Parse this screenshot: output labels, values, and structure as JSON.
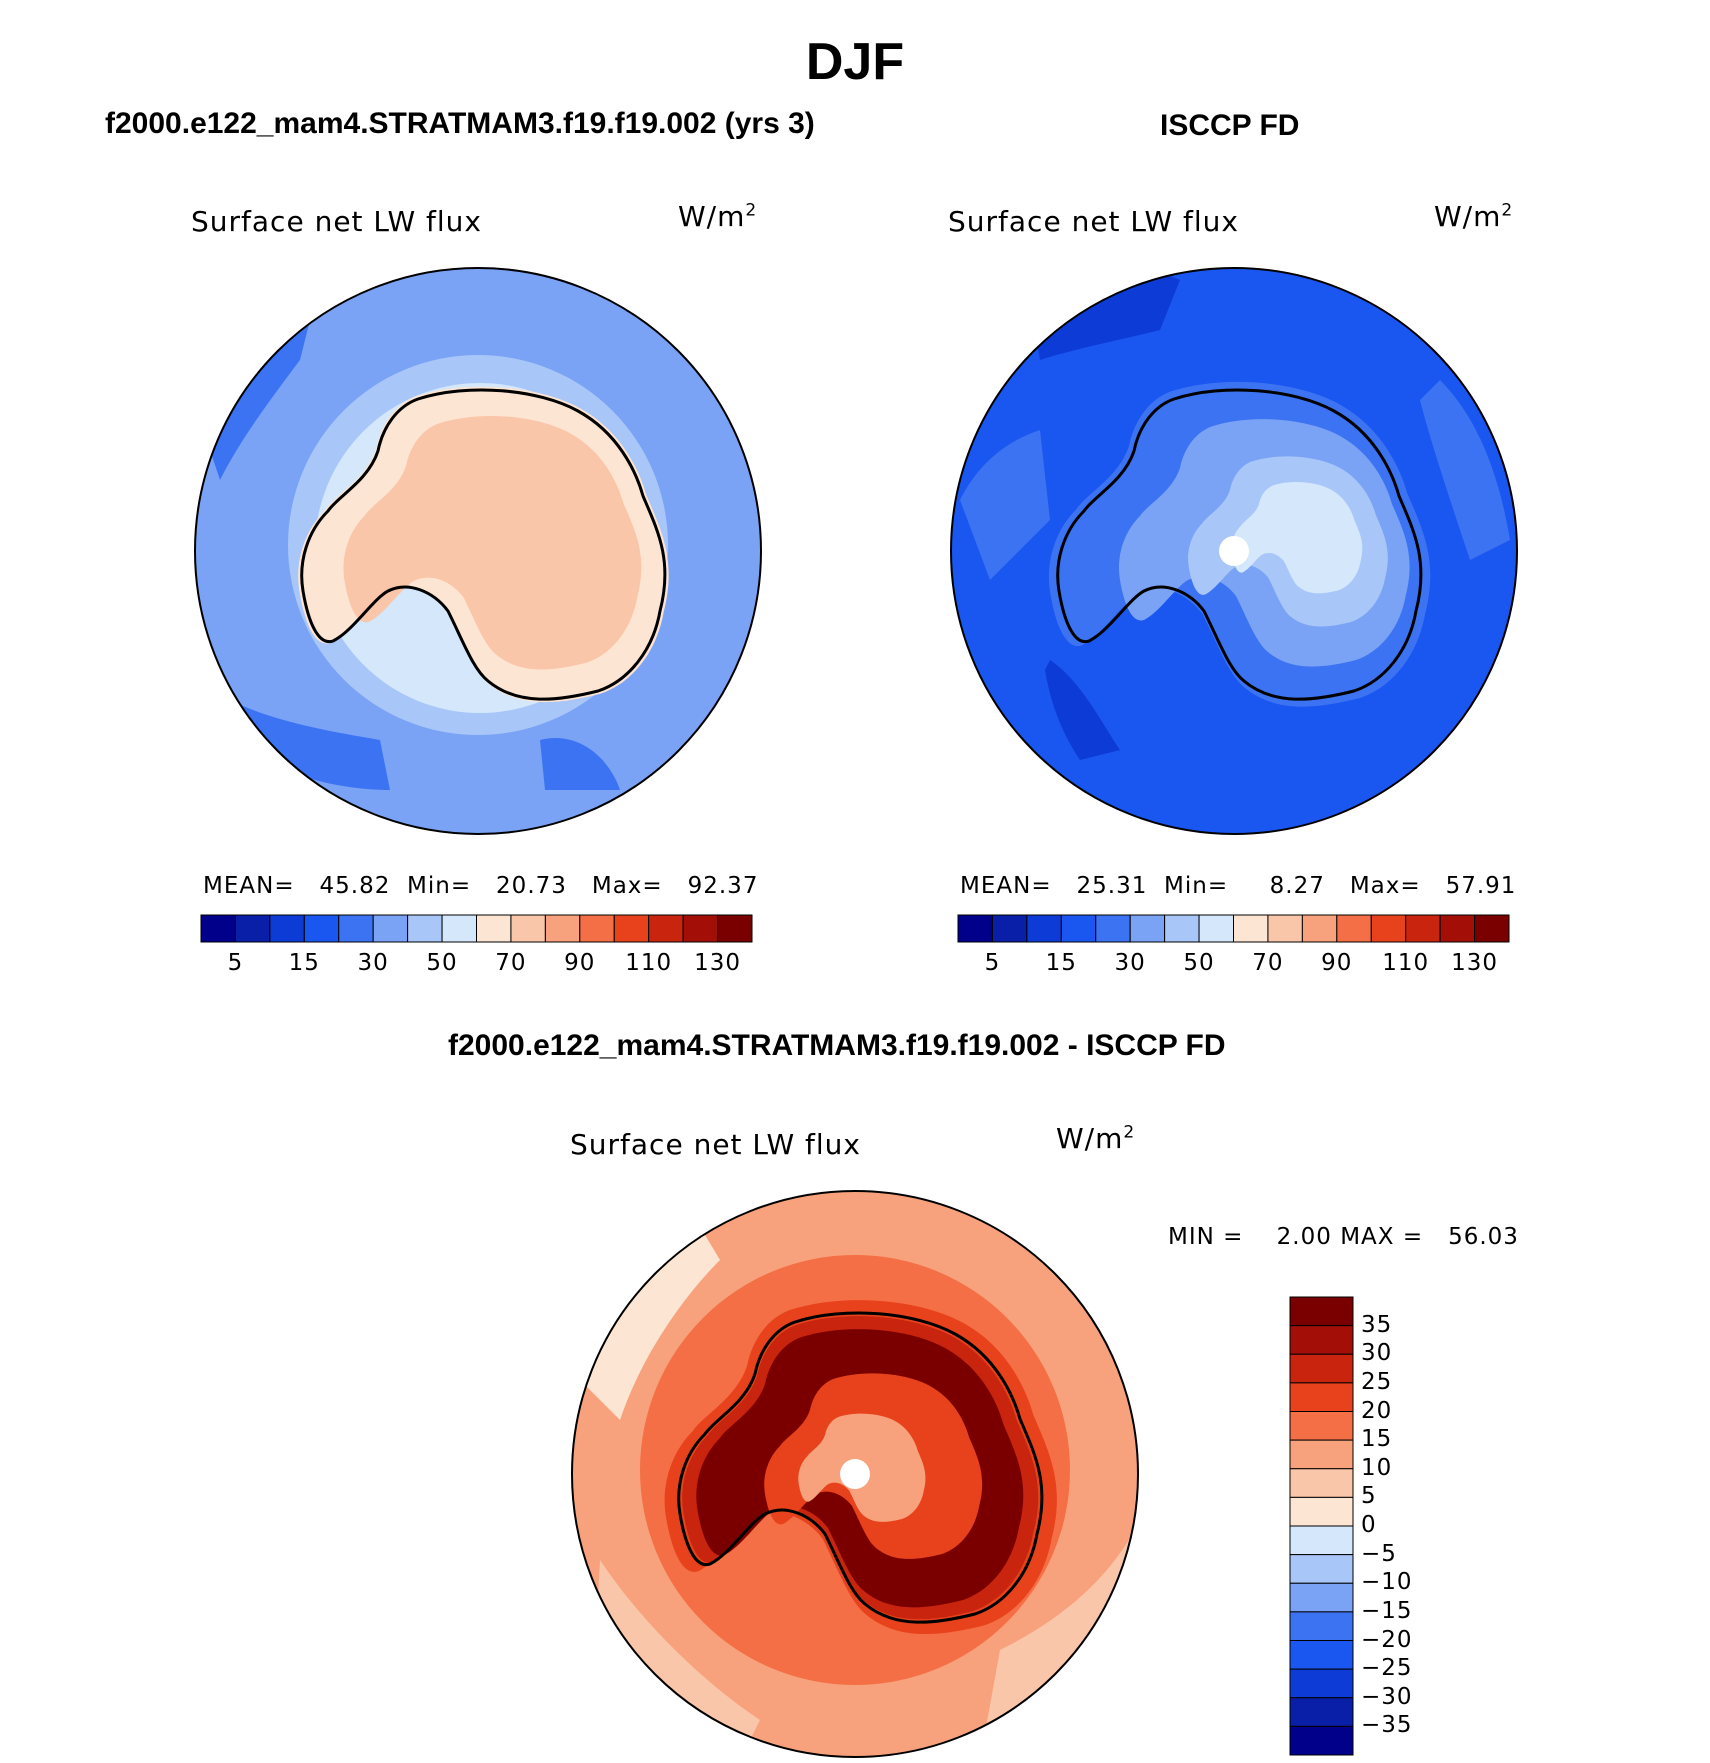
{
  "season": "DJF",
  "panel_left": {
    "case_title": "f2000.e122_mam4.STRATMAM3.f19.f19.002 (yrs 3)",
    "variable": "Surface net LW flux",
    "units_base": "W/m",
    "units_exp": "2",
    "stats": {
      "mean_label": "MEAN=",
      "mean": "45.82",
      "min_label": "Min=",
      "min": "20.73",
      "max_label": "Max=",
      "max": "92.37"
    }
  },
  "panel_right": {
    "case_title": "ISCCP FD",
    "variable": "Surface net LW flux",
    "units_base": "W/m",
    "units_exp": "2",
    "stats": {
      "mean_label": "MEAN=",
      "mean": "25.31",
      "min_label": "Min=",
      "min": "8.27",
      "max_label": "Max=",
      "max": "57.91"
    }
  },
  "panel_diff": {
    "case_title": "f2000.e122_mam4.STRATMAM3.f19.f19.002 - ISCCP FD",
    "variable": "Surface net LW flux",
    "units_base": "W/m",
    "units_exp": "2",
    "min_label": "MIN =",
    "min": "2.00",
    "max_label": "MAX =",
    "max": "56.03"
  },
  "colorbar_abs": {
    "levels": [
      5,
      10,
      15,
      20,
      30,
      40,
      50,
      60,
      70,
      80,
      90,
      100,
      110,
      120,
      130
    ],
    "tick_labels": [
      "5",
      "15",
      "30",
      "50",
      "70",
      "90",
      "110",
      "130"
    ],
    "colors": [
      "#00008b",
      "#0a1fa8",
      "#0d3bd6",
      "#1a56f0",
      "#3c73f2",
      "#7aa3f5",
      "#a9c6f8",
      "#d4e7fb",
      "#fde5d3",
      "#fac6a9",
      "#f7a27c",
      "#f46f45",
      "#e8421c",
      "#c8240e",
      "#a30f06",
      "#7a0000"
    ]
  },
  "colorbar_diff": {
    "levels": [
      -35,
      -30,
      -25,
      -20,
      -15,
      -10,
      -5,
      0,
      5,
      10,
      15,
      20,
      25,
      30,
      35
    ],
    "tick_labels": [
      "35",
      "30",
      "25",
      "20",
      "15",
      "10",
      "5",
      "0",
      "−5",
      "−10",
      "−15",
      "−20",
      "−25",
      "−30",
      "−35"
    ],
    "colors": [
      "#00008b",
      "#0a1fa8",
      "#0d3bd6",
      "#1a56f0",
      "#3c73f2",
      "#7aa3f5",
      "#a9c6f8",
      "#d4e7fb",
      "#fde5d3",
      "#fac6a9",
      "#f7a27c",
      "#f46f45",
      "#e8421c",
      "#c8240e",
      "#a30f06",
      "#7a0000"
    ]
  }
}
